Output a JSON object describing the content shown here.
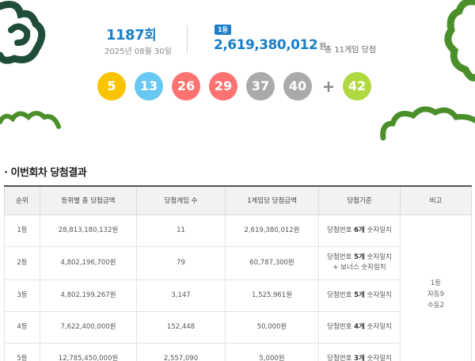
{
  "draw": {
    "round": "1187",
    "round_suffix": "회",
    "date": "2025년 08월 30일",
    "first_badge": "1등",
    "first_prize": "2,619,380,012",
    "first_prize_unit": "원",
    "winners_text": "총 11게임 당첨",
    "balls": [
      {
        "num": "5",
        "color": "#fbc400"
      },
      {
        "num": "13",
        "color": "#69c8f2"
      },
      {
        "num": "26",
        "color": "#ff7272"
      },
      {
        "num": "29",
        "color": "#ff7272"
      },
      {
        "num": "37",
        "color": "#aaaaaa"
      },
      {
        "num": "40",
        "color": "#aaaaaa"
      }
    ],
    "plus": "+",
    "bonus": {
      "num": "42",
      "color": "#b0d840"
    }
  },
  "section_title": "이번회차 당첨결과",
  "section_bullet": "·",
  "table": {
    "headers": [
      "순위",
      "등위별 총 당첨금액",
      "당첨게임 수",
      "1게임당 당첨금액",
      "당첨기준",
      "비고"
    ],
    "rows": [
      {
        "rank": "1등",
        "total": "28,813,180,132원",
        "count": "11",
        "per": "2,619,380,012원",
        "crit_pre": "당첨번호 ",
        "crit_bold": "6개",
        "crit_post": " 숫자일치",
        "crit_line2": ""
      },
      {
        "rank": "2등",
        "total": "4,802,196,700원",
        "count": "79",
        "per": "60,787,300원",
        "crit_pre": "당첨번호 ",
        "crit_bold": "5개",
        "crit_post": " 숫자일치",
        "crit_line2": "+ 보너스 숫자일치"
      },
      {
        "rank": "3등",
        "total": "4,802,199,267원",
        "count": "3,147",
        "per": "1,525,961원",
        "crit_pre": "당첨번호 ",
        "crit_bold": "5개",
        "crit_post": " 숫자일치",
        "crit_line2": ""
      },
      {
        "rank": "4등",
        "total": "7,622,400,000원",
        "count": "152,448",
        "per": "50,000원",
        "crit_pre": "당첨번호 ",
        "crit_bold": "4개",
        "crit_post": " 숫자일치",
        "crit_line2": ""
      },
      {
        "rank": "5등",
        "total": "12,785,450,000원",
        "count": "2,557,090",
        "per": "5,000원",
        "crit_pre": "당첨번호 ",
        "crit_bold": "3개",
        "crit_post": " 숫자일치",
        "crit_line2": ""
      }
    ],
    "note": {
      "line1": "1등",
      "line2": "자동9",
      "line3": "수동2"
    }
  },
  "colors": {
    "accent": "#1a7fc8",
    "deco_green": "#4a8f2a",
    "deco_dark": "#1f4d3a"
  }
}
